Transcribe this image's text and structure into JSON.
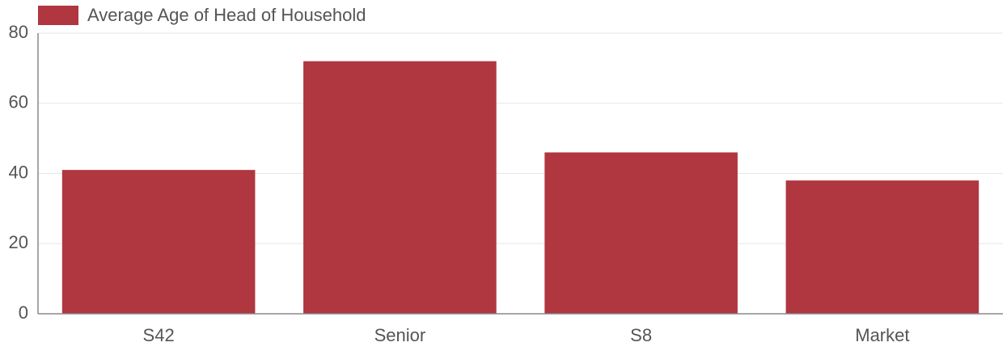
{
  "chart_data": {
    "type": "bar",
    "categories": [
      "S42",
      "Senior",
      "S8",
      "Market"
    ],
    "series": [
      {
        "name": "Average Age of Head of Household",
        "color": "#b03640",
        "values": [
          41,
          72,
          46,
          38
        ]
      }
    ],
    "ylim": [
      0,
      80
    ],
    "yticks": [
      0,
      20,
      40,
      60,
      80
    ],
    "grid": true,
    "legend": "top-left"
  }
}
